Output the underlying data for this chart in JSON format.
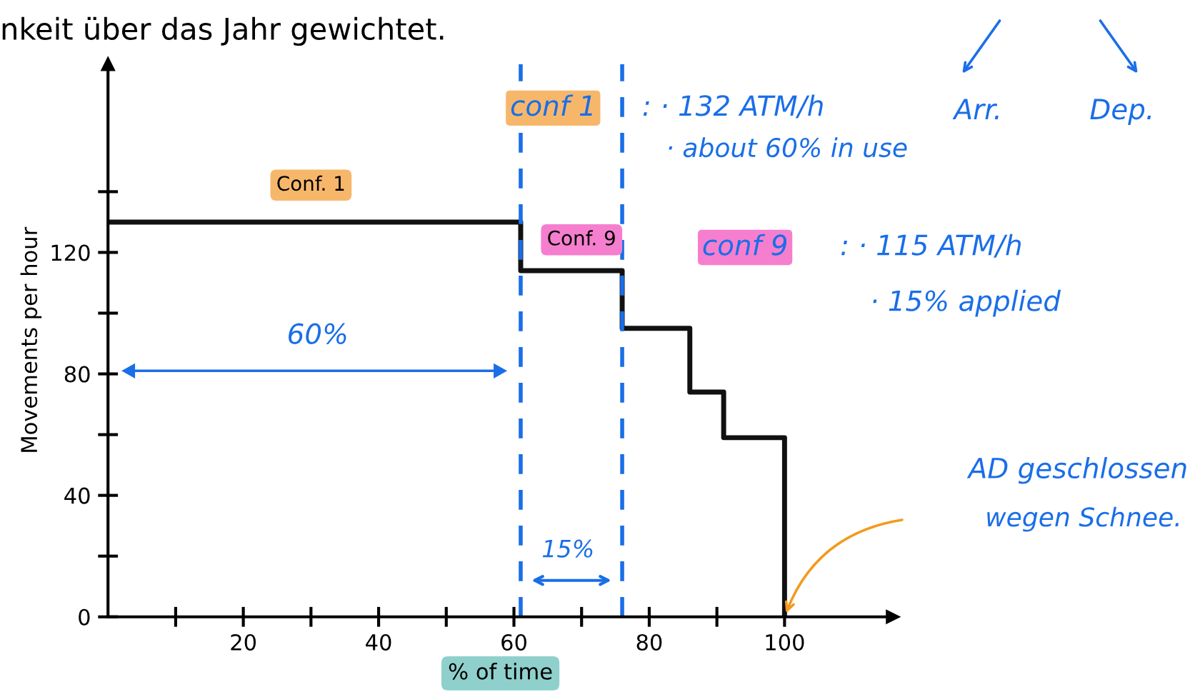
{
  "chart_data": {
    "type": "step",
    "xlabel": "% of time",
    "ylabel": "Movements per hour",
    "x": [
      0,
      61,
      76,
      86,
      91,
      100
    ],
    "series": [
      {
        "color": "#111111",
        "values": [
          130,
          114,
          95,
          74,
          59,
          0
        ]
      }
    ],
    "xlim": [
      0,
      116
    ],
    "ylim": [
      0,
      182
    ],
    "xticks": [
      {
        "value": 10,
        "label": null
      },
      20,
      {
        "value": 30,
        "label": null
      },
      40,
      {
        "value": 50,
        "label": null
      },
      60,
      {
        "value": 70,
        "label": null
      },
      80,
      {
        "value": 90,
        "label": null
      },
      100
    ],
    "yticks": [
      0,
      {
        "value": 20,
        "label": null
      },
      40,
      {
        "value": 60,
        "label": null
      },
      80,
      {
        "value": 100,
        "label": null
      },
      120,
      {
        "value": 140,
        "label": null
      }
    ],
    "grid": false,
    "legend": false,
    "ref_lines": [
      {
        "axis": "x",
        "value": 61,
        "color": "#1a6ee8",
        "line_style": "dashed"
      },
      {
        "axis": "x",
        "value": 76,
        "color": "#1a6ee8",
        "line_style": "dashed"
      }
    ],
    "annotations": [
      "Conf. 1",
      "Conf. 9",
      "60%",
      "15%",
      "nkeit über das Jahr gewichtet.",
      "Arr.",
      "Dep.",
      "conf 1",
      ": · 132 ATM/h",
      "· about 60% in use",
      "conf 9",
      ": · 115 ATM/h",
      "· 15% applied",
      "AD geschlossen",
      "wegen Schnee."
    ]
  }
}
